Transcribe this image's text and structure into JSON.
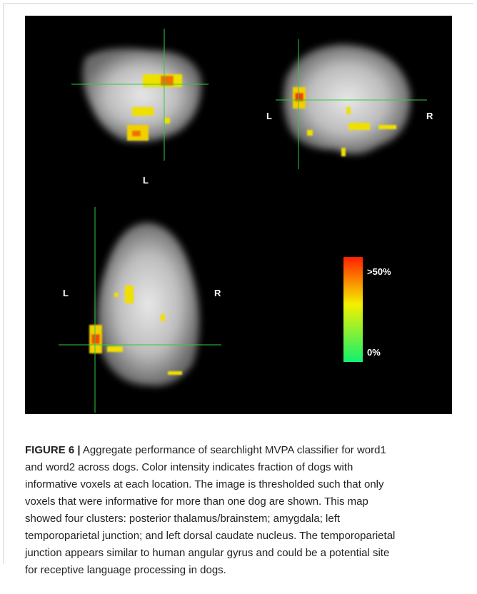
{
  "figure": {
    "labels": {
      "sagittal_l": "L",
      "coronal_l": "L",
      "coronal_r": "R",
      "axial_l": "L",
      "axial_r": "R",
      "scale_max": ">50%",
      "scale_min": "0%"
    }
  },
  "caption": {
    "label": "FIGURE 6 |",
    "lines": [
      " Aggregate performance of searchlight MVPA classifier for word1",
      "and word2 across dogs. Color intensity indicates fraction of dogs with",
      "informative voxels at each location. The image is thresholded such that only",
      "voxels that were informative for more than one dog are shown. This map",
      "showed four clusters: posterior thalamus/brainstem; amygdala; left",
      "temporoparietal junction; and left dorsal caudate nucleus. The temporoparietal",
      "junction appears similar to human angular gyrus and could be a potential site",
      "for receptive language processing in dogs."
    ]
  }
}
